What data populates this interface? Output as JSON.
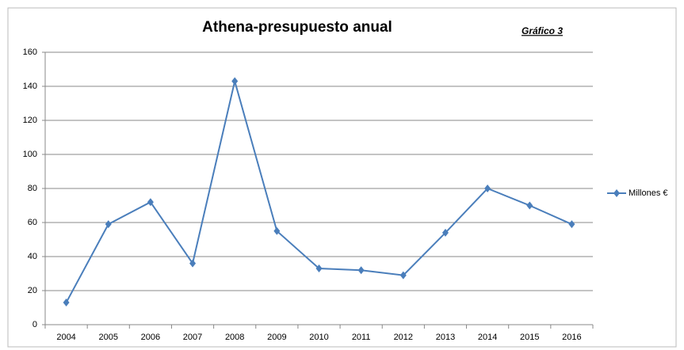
{
  "chart_data": {
    "type": "line",
    "title": "Athena-presupuesto anual",
    "annotation": "Gráfico 3",
    "categories": [
      "2004",
      "2005",
      "2006",
      "2007",
      "2008",
      "2009",
      "2010",
      "2011",
      "2012",
      "2013",
      "2014",
      "2015",
      "2016"
    ],
    "series": [
      {
        "name": "Millones €",
        "color": "#4a7ebb",
        "values": [
          13,
          59,
          72,
          36,
          143,
          55,
          33,
          32,
          29,
          54,
          80,
          70,
          59
        ]
      }
    ],
    "ylim": [
      0,
      160
    ],
    "yticks": [
      0,
      20,
      40,
      60,
      80,
      100,
      120,
      140,
      160
    ],
    "grid": true,
    "legend": "right"
  }
}
